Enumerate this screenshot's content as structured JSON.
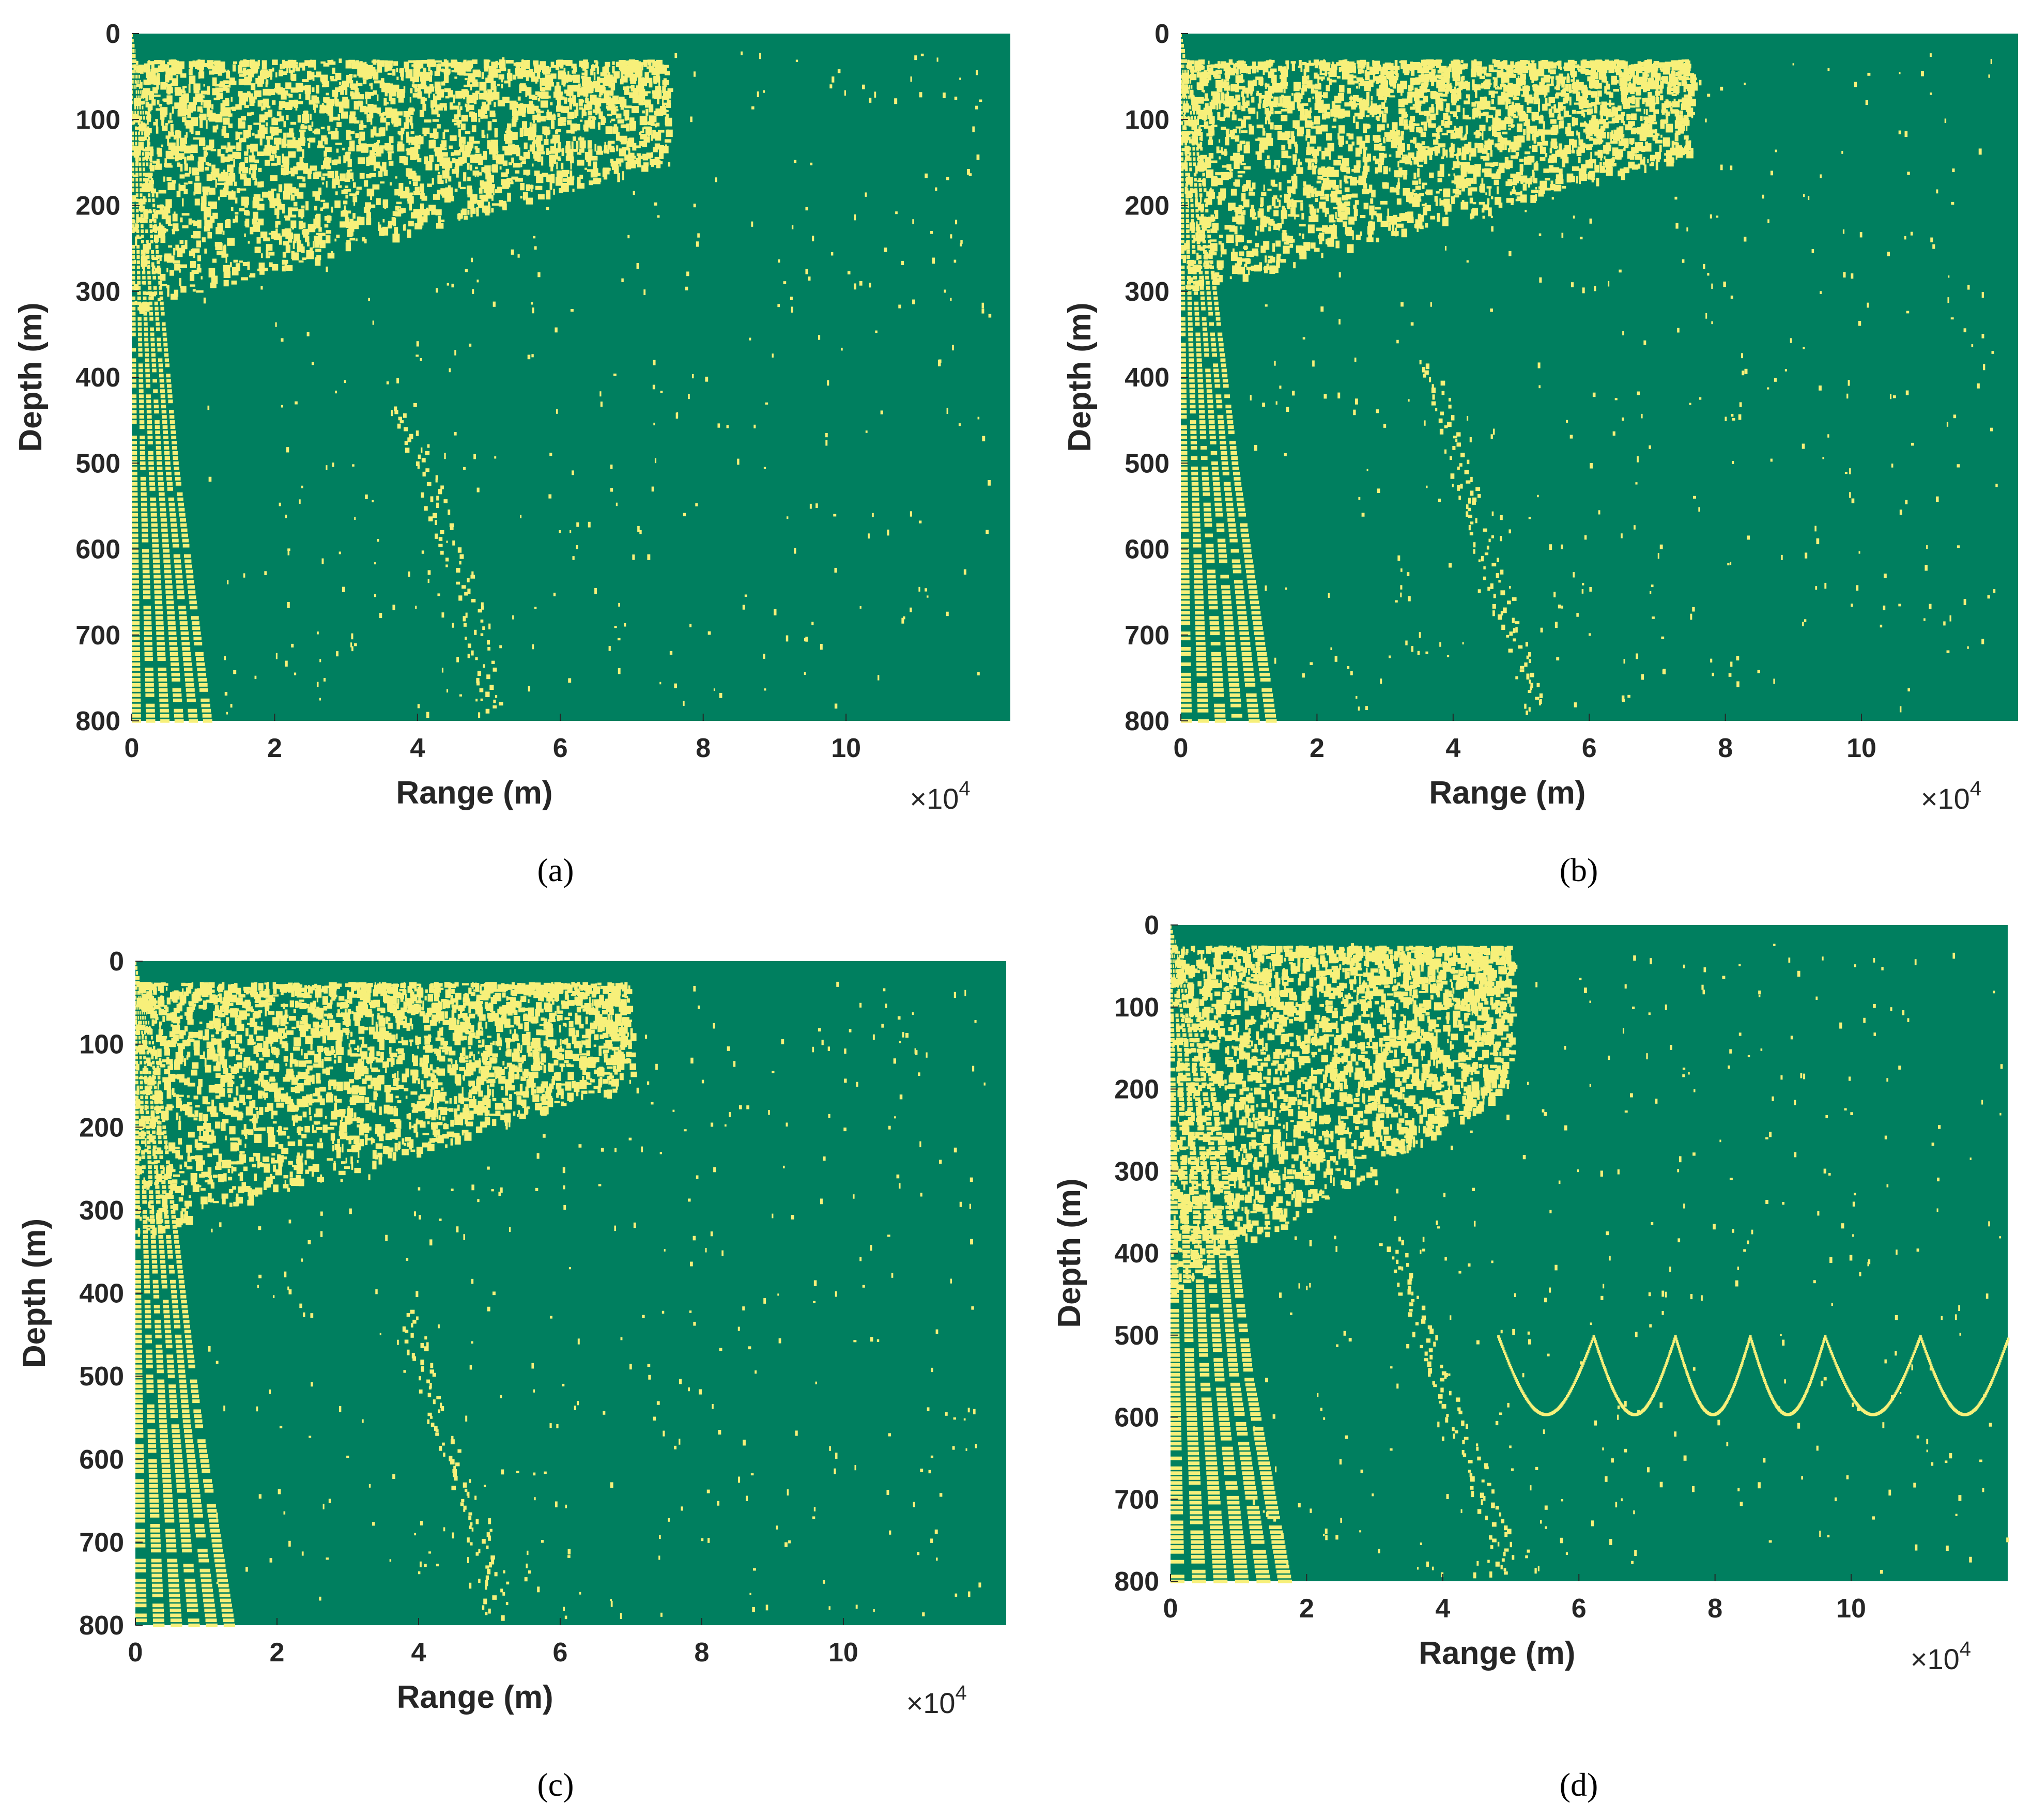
{
  "colors": {
    "background": "#007f5f",
    "feature": "#f7f07a",
    "axis": "#262626"
  },
  "chart_data": [
    {
      "panel": "a",
      "type": "heatmap",
      "caption": "(a)",
      "xlabel": "Range (m)",
      "ylabel": "Depth (m)",
      "x_multiplier": "×10",
      "x_multiplier_exp": "4",
      "xlim": [
        0,
        12.3
      ],
      "ylim": [
        0,
        800
      ],
      "y_reversed": true,
      "xticks": [
        0,
        2,
        4,
        6,
        8,
        10
      ],
      "xtick_labels": [
        "0",
        "2",
        "4",
        "6",
        "8",
        "10"
      ],
      "yticks": [
        0,
        100,
        200,
        300,
        400,
        500,
        600,
        700,
        800
      ],
      "ytick_labels": [
        "0",
        "100",
        "200",
        "300",
        "400",
        "500",
        "600",
        "700",
        "800"
      ],
      "values": "binary field (0 = background, 1 = feature)",
      "features": {
        "beam_edge": [
          [
            0.0,
            0
          ],
          [
            0.25,
            100
          ],
          [
            0.4,
            250
          ],
          [
            0.7,
            500
          ],
          [
            1.2,
            800
          ]
        ],
        "dense_band_end": 7.5,
        "dense_band_depth": [
          30,
          320
        ],
        "lower_arc": [
          [
            3.8,
            430
          ],
          [
            4.3,
            560
          ],
          [
            4.7,
            650
          ],
          [
            5.0,
            790
          ]
        ],
        "far_scatter_to": 12.0,
        "deep_arcs": []
      }
    },
    {
      "panel": "b",
      "type": "heatmap",
      "caption": "(b)",
      "xlabel": "Range (m)",
      "ylabel": "Depth (m)",
      "x_multiplier": "×10",
      "x_multiplier_exp": "4",
      "xlim": [
        0,
        12.3
      ],
      "ylim": [
        0,
        800
      ],
      "y_reversed": true,
      "xticks": [
        0,
        2,
        4,
        6,
        8,
        10
      ],
      "xtick_labels": [
        "0",
        "2",
        "4",
        "6",
        "8",
        "10"
      ],
      "yticks": [
        0,
        100,
        200,
        300,
        400,
        500,
        600,
        700,
        800
      ],
      "ytick_labels": [
        "0",
        "100",
        "200",
        "300",
        "400",
        "500",
        "600",
        "700",
        "800"
      ],
      "values": "binary field (0 = background, 1 = feature)",
      "features": {
        "beam_edge": [
          [
            0.0,
            0
          ],
          [
            0.3,
            100
          ],
          [
            0.5,
            260
          ],
          [
            0.9,
            500
          ],
          [
            1.5,
            800
          ]
        ],
        "dense_band_end": 7.5,
        "dense_band_depth": [
          30,
          300
        ],
        "lower_arc": [
          [
            3.6,
            380
          ],
          [
            4.3,
            560
          ],
          [
            4.8,
            680
          ],
          [
            5.2,
            790
          ]
        ],
        "far_scatter_to": 12.0,
        "deep_arcs": []
      }
    },
    {
      "panel": "c",
      "type": "heatmap",
      "caption": "(c)",
      "xlabel": "Range (m)",
      "ylabel": "Depth (m)",
      "x_multiplier": "×10",
      "x_multiplier_exp": "4",
      "xlim": [
        0,
        12.3
      ],
      "ylim": [
        0,
        800
      ],
      "y_reversed": true,
      "xticks": [
        0,
        2,
        4,
        6,
        8,
        10
      ],
      "xtick_labels": [
        "0",
        "2",
        "4",
        "6",
        "8",
        "10"
      ],
      "yticks": [
        0,
        100,
        200,
        300,
        400,
        500,
        600,
        700,
        800
      ],
      "ytick_labels": [
        "0",
        "100",
        "200",
        "300",
        "400",
        "500",
        "600",
        "700",
        "800"
      ],
      "values": "binary field (0 = background, 1 = feature)",
      "features": {
        "beam_edge": [
          [
            0.0,
            0
          ],
          [
            0.35,
            120
          ],
          [
            0.6,
            300
          ],
          [
            1.0,
            550
          ],
          [
            1.5,
            800
          ]
        ],
        "dense_band_end": 7.0,
        "dense_band_depth": [
          25,
          330
        ],
        "lower_arc": [
          [
            3.8,
            420
          ],
          [
            4.4,
            580
          ],
          [
            4.9,
            700
          ],
          [
            5.1,
            790
          ]
        ],
        "far_scatter_to": 12.0,
        "deep_arcs": []
      }
    },
    {
      "panel": "d",
      "type": "heatmap",
      "caption": "(d)",
      "xlabel": "Range (m)",
      "ylabel": "Depth (m)",
      "x_multiplier": "×10",
      "x_multiplier_exp": "4",
      "xlim": [
        0,
        12.3
      ],
      "ylim": [
        0,
        800
      ],
      "y_reversed": true,
      "xticks": [
        0,
        2,
        4,
        6,
        8,
        10
      ],
      "xtick_labels": [
        "0",
        "2",
        "4",
        "6",
        "8",
        "10"
      ],
      "yticks": [
        0,
        100,
        200,
        300,
        400,
        500,
        600,
        700,
        800
      ],
      "ytick_labels": [
        "0",
        "100",
        "200",
        "300",
        "400",
        "500",
        "600",
        "700",
        "800"
      ],
      "values": "binary field (0 = background, 1 = feature)",
      "features": {
        "beam_edge": [
          [
            0.0,
            0
          ],
          [
            0.6,
            150
          ],
          [
            0.9,
            300
          ],
          [
            1.3,
            550
          ],
          [
            1.9,
            800
          ]
        ],
        "dense_band_end": 5.0,
        "dense_band_depth": [
          25,
          450
        ],
        "lower_arc": [
          [
            3.2,
            380
          ],
          [
            4.2,
            600
          ],
          [
            4.8,
            740
          ],
          [
            5.0,
            790
          ]
        ],
        "far_scatter_to": 12.3,
        "deep_arcs": [
          6.2,
          7.4,
          8.5,
          9.6,
          11.0,
          12.3
        ]
      }
    }
  ]
}
